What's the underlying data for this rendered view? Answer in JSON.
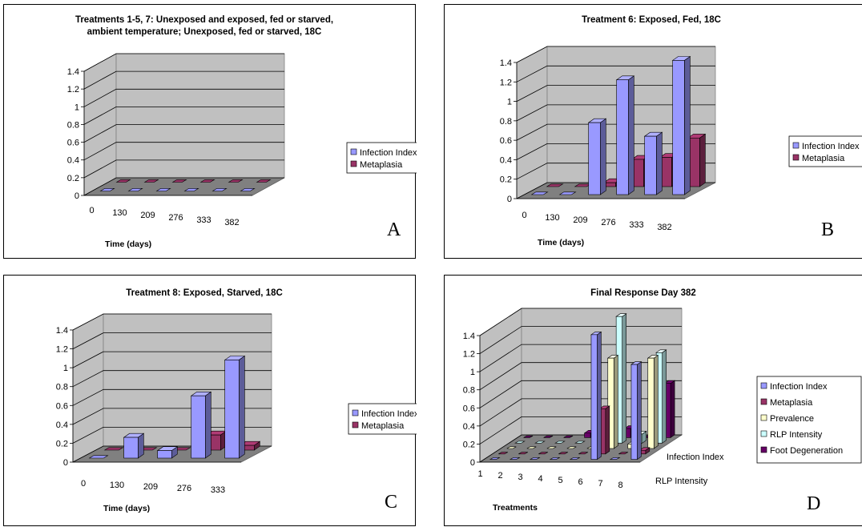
{
  "chart_data": [
    {
      "panel": "A",
      "type": "bar",
      "title": [
        "Treatments 1-5, 7: Unexposed and exposed, fed or starved,",
        "ambient temperature; Unexposed, fed or starved, 18C"
      ],
      "xlabel": "Time (days)",
      "categories": [
        "0",
        "130",
        "209",
        "276",
        "333",
        "382"
      ],
      "series": [
        {
          "name": "Infection Index",
          "values": [
            0,
            0,
            0,
            0,
            0,
            0
          ],
          "color": "#9999ff"
        },
        {
          "name": "Metaplasia",
          "values": [
            0,
            0,
            0,
            0,
            0,
            0
          ],
          "color": "#993366"
        }
      ],
      "ylim": [
        0,
        1.4
      ],
      "yticks": [
        "0",
        "0.2",
        "0.4",
        "0.6",
        "0.8",
        "1",
        "1.2",
        "1.4"
      ],
      "letter": "A"
    },
    {
      "panel": "B",
      "type": "bar",
      "title": [
        "Treatment 6: Exposed, Fed, 18C"
      ],
      "xlabel": "Time (days)",
      "categories": [
        "0",
        "130",
        "209",
        "276",
        "333",
        "382"
      ],
      "series": [
        {
          "name": "Infection Index",
          "values": [
            0,
            0,
            0.74,
            1.18,
            0.6,
            1.38
          ],
          "color": "#9999ff"
        },
        {
          "name": "Metaplasia",
          "values": [
            0,
            0,
            0.04,
            0.28,
            0.3,
            0.5
          ],
          "color": "#993366"
        }
      ],
      "ylim": [
        0,
        1.4
      ],
      "yticks": [
        "0",
        "0.2",
        "0.4",
        "0.6",
        "0.8",
        "1",
        "1.2",
        "1.4"
      ],
      "letter": "B"
    },
    {
      "panel": "C",
      "type": "bar",
      "title": [
        "Treatment 8: Exposed, Starved, 18C"
      ],
      "xlabel": "Time (days)",
      "categories": [
        "0",
        "130",
        "209",
        "276",
        "333"
      ],
      "series": [
        {
          "name": "Infection Index",
          "values": [
            0,
            0.22,
            0.08,
            0.66,
            1.04
          ],
          "color": "#9999ff"
        },
        {
          "name": "Metaplasia",
          "values": [
            0,
            0,
            0,
            0.16,
            0.05
          ],
          "color": "#993366"
        }
      ],
      "ylim": [
        0,
        1.4
      ],
      "yticks": [
        "0",
        "0.2",
        "0.4",
        "0.6",
        "0.8",
        "1",
        "1.2",
        "1.4"
      ],
      "letter": "C"
    },
    {
      "panel": "D",
      "type": "bar",
      "title": [
        "Final Response Day 382"
      ],
      "xlabel": "Treatments",
      "categories": [
        "1",
        "2",
        "3",
        "4",
        "5",
        "6",
        "7",
        "8"
      ],
      "depth_labels": [
        "Infection Index",
        "RLP Intensity"
      ],
      "series": [
        {
          "name": "Infection Index",
          "values": [
            0,
            0,
            0,
            0,
            0,
            1.38,
            0,
            1.05
          ],
          "color": "#9999ff"
        },
        {
          "name": "Metaplasia",
          "values": [
            0,
            0,
            0,
            0,
            0,
            0.5,
            0,
            0.04
          ],
          "color": "#993366"
        },
        {
          "name": "Prevalence",
          "values": [
            0,
            0,
            0,
            0,
            0,
            1.0,
            0.05,
            1.0
          ],
          "color": "#ffffcc"
        },
        {
          "name": "RLP Intensity",
          "values": [
            0,
            0,
            0,
            0,
            0,
            1.4,
            0.1,
            1.0
          ],
          "color": "#ccffff"
        },
        {
          "name": "Foot Degeneration",
          "values": [
            0,
            0,
            0,
            0.05,
            0,
            0.1,
            0,
            0.6
          ],
          "color": "#660066"
        }
      ],
      "ylim": [
        0,
        1.4
      ],
      "yticks": [
        "0",
        "0.2",
        "0.4",
        "0.6",
        "0.8",
        "1",
        "1.2",
        "1.4"
      ],
      "letter": "D"
    }
  ]
}
